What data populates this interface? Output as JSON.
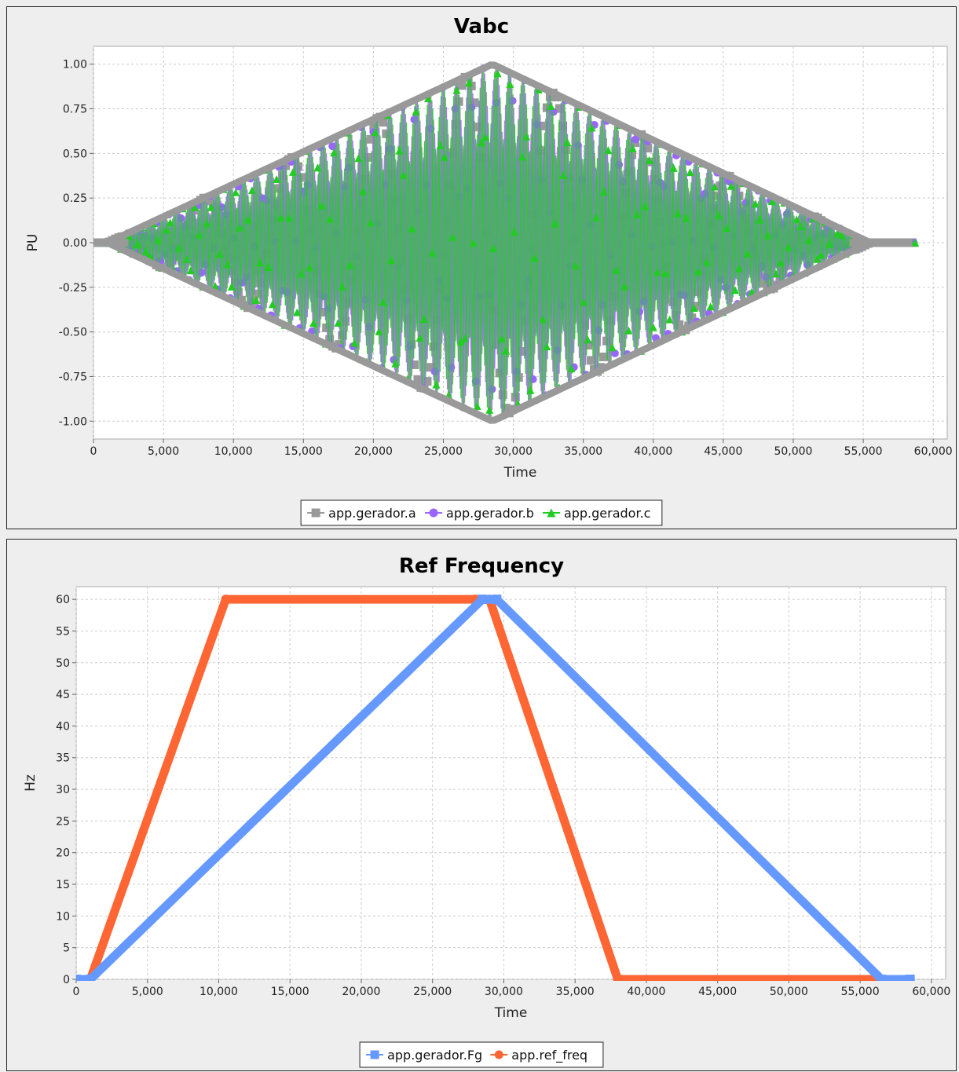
{
  "chart_data": [
    {
      "type": "line",
      "title": "Vabc",
      "xlabel": "Time",
      "ylabel": "PU",
      "xlim": [
        0,
        61000
      ],
      "ylim": [
        -1.1,
        1.1
      ],
      "x_ticks": [
        0,
        5000,
        10000,
        15000,
        20000,
        25000,
        30000,
        35000,
        40000,
        45000,
        50000,
        55000,
        60000
      ],
      "x_tick_labels": [
        "0",
        "5,000",
        "10,000",
        "15,000",
        "20,000",
        "25,000",
        "30,000",
        "35,000",
        "40,000",
        "45,000",
        "50,000",
        "55,000",
        "60,000"
      ],
      "y_ticks": [
        -1.0,
        -0.75,
        -0.5,
        -0.25,
        0.0,
        0.25,
        0.5,
        0.75,
        1.0
      ],
      "y_tick_labels": [
        "-1.00",
        "-0.75",
        "-0.50",
        "-0.25",
        "0.00",
        "0.25",
        "0.50",
        "0.75",
        "1.00"
      ],
      "grid": true,
      "legend_position": "bottom-center",
      "envelope": {
        "x": [
          0,
          1000,
          28500,
          55500,
          58500
        ],
        "amplitude": [
          0,
          0,
          1.0,
          0,
          0
        ]
      },
      "series": [
        {
          "name": "app.gerador.a",
          "color": "#999999",
          "marker": "square"
        },
        {
          "name": "app.gerador.b",
          "color": "#9966ff",
          "marker": "circle"
        },
        {
          "name": "app.gerador.c",
          "color": "#22cc22",
          "marker": "triangle"
        }
      ]
    },
    {
      "type": "line",
      "title": "Ref Frequency",
      "xlabel": "Time",
      "ylabel": "Hz",
      "xlim": [
        0,
        61000
      ],
      "ylim": [
        0,
        62
      ],
      "x_ticks": [
        0,
        5000,
        10000,
        15000,
        20000,
        25000,
        30000,
        35000,
        40000,
        45000,
        50000,
        55000,
        60000
      ],
      "x_tick_labels": [
        "0",
        "5,000",
        "10,000",
        "15,000",
        "20,000",
        "25,000",
        "30,000",
        "35,000",
        "40,000",
        "45,000",
        "50,000",
        "55,000",
        "60,000"
      ],
      "y_ticks": [
        0,
        5,
        10,
        15,
        20,
        25,
        30,
        35,
        40,
        45,
        50,
        55,
        60
      ],
      "y_tick_labels": [
        "0",
        "5",
        "10",
        "15",
        "20",
        "25",
        "30",
        "35",
        "40",
        "45",
        "50",
        "55",
        "60"
      ],
      "grid": true,
      "legend_position": "bottom-center",
      "series": [
        {
          "name": "app.gerador.Fg",
          "color": "#6699ff",
          "marker": "square",
          "x": [
            0,
            1000,
            28500,
            29500,
            56500,
            58500
          ],
          "y": [
            0,
            0,
            60,
            60,
            0,
            0
          ]
        },
        {
          "name": "app.ref_freq",
          "color": "#ff6633",
          "marker": "circle",
          "x": [
            1000,
            10500,
            28000,
            29000,
            38000,
            56000
          ],
          "y": [
            0,
            60,
            60,
            60,
            0,
            0
          ]
        }
      ]
    }
  ]
}
